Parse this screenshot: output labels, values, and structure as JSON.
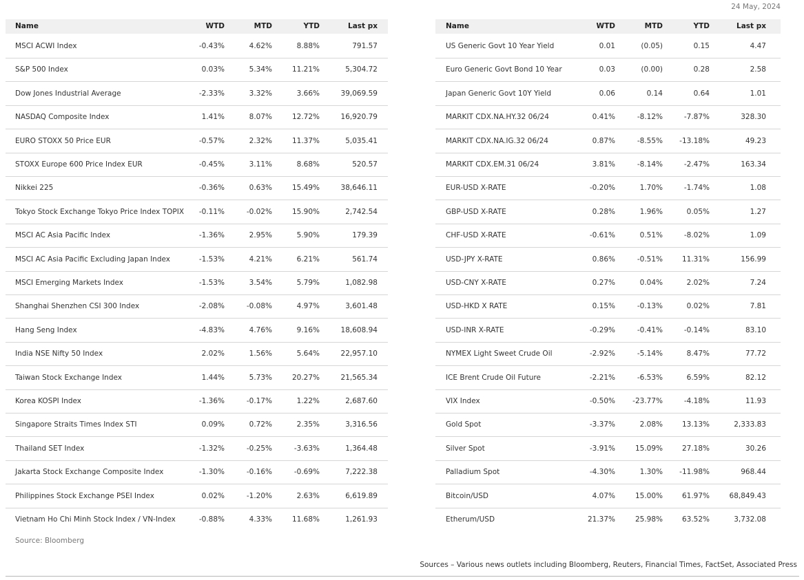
{
  "date": "24 May, 2024",
  "left_table": {
    "columns": [
      "Name",
      "WTD",
      "MTD",
      "YTD",
      "Last px"
    ],
    "rows": [
      [
        "MSCI ACWI Index",
        "-0.43%",
        "4.62%",
        "8.88%",
        "791.57"
      ],
      [
        "S&P 500 Index",
        "0.03%",
        "5.34%",
        "11.21%",
        "5,304.72"
      ],
      [
        "Dow Jones Industrial Average",
        "-2.33%",
        "3.32%",
        "3.66%",
        "39,069.59"
      ],
      [
        "NASDAQ Composite Index",
        "1.41%",
        "8.07%",
        "12.72%",
        "16,920.79"
      ],
      [
        "EURO STOXX 50 Price EUR",
        "-0.57%",
        "2.32%",
        "11.37%",
        "5,035.41"
      ],
      [
        "STOXX Europe 600 Price Index EUR",
        "-0.45%",
        "3.11%",
        "8.68%",
        "520.57"
      ],
      [
        "Nikkei 225",
        "-0.36%",
        "0.63%",
        "15.49%",
        "38,646.11"
      ],
      [
        "Tokyo Stock Exchange Tokyo Price Index TOPIX",
        "-0.11%",
        "-0.02%",
        "15.90%",
        "2,742.54"
      ],
      [
        "MSCI AC Asia Pacific Index",
        "-1.36%",
        "2.95%",
        "5.90%",
        "179.39"
      ],
      [
        "MSCI AC Asia Pacific Excluding Japan Index",
        "-1.53%",
        "4.21%",
        "6.21%",
        "561.74"
      ],
      [
        "MSCI Emerging Markets Index",
        "-1.53%",
        "3.54%",
        "5.79%",
        "1,082.98"
      ],
      [
        "Shanghai Shenzhen CSI 300 Index",
        "-2.08%",
        "-0.08%",
        "4.97%",
        "3,601.48"
      ],
      [
        "Hang Seng Index",
        "-4.83%",
        "4.76%",
        "9.16%",
        "18,608.94"
      ],
      [
        "India NSE Nifty 50 Index",
        "2.02%",
        "1.56%",
        "5.64%",
        "22,957.10"
      ],
      [
        "Taiwan Stock Exchange Index",
        "1.44%",
        "5.73%",
        "20.27%",
        "21,565.34"
      ],
      [
        "Korea KOSPI Index",
        "-1.36%",
        "-0.17%",
        "1.22%",
        "2,687.60"
      ],
      [
        "Singapore Straits Times Index STI",
        "0.09%",
        "0.72%",
        "2.35%",
        "3,316.56"
      ],
      [
        "Thailand SET Index",
        "-1.32%",
        "-0.25%",
        "-3.63%",
        "1,364.48"
      ],
      [
        "Jakarta Stock Exchange Composite Index",
        "-1.30%",
        "-0.16%",
        "-0.69%",
        "7,222.38"
      ],
      [
        "Philippines Stock Exchange PSEI Index",
        "0.02%",
        "-1.20%",
        "2.63%",
        "6,619.89"
      ],
      [
        "Vietnam Ho Chi Minh Stock Index / VN-Index",
        "-0.88%",
        "4.33%",
        "11.68%",
        "1,261.93"
      ]
    ]
  },
  "left_source": "Source: Bloomberg",
  "right_table": {
    "columns": [
      "Name",
      "WTD",
      "MTD",
      "YTD",
      "Last px"
    ],
    "rows": [
      [
        "US Generic Govt 10 Year Yield",
        "0.01",
        "(0.05)",
        "0.15",
        "4.47"
      ],
      [
        "Euro Generic Govt Bond 10 Year",
        "0.03",
        "(0.00)",
        "0.28",
        "2.58"
      ],
      [
        "Japan Generic Govt 10Y Yield",
        "0.06",
        "0.14",
        "0.64",
        "1.01"
      ],
      [
        "MARKIT CDX.NA.HY.32 06/24",
        "0.41%",
        "-8.12%",
        "-7.87%",
        "328.30"
      ],
      [
        "MARKIT CDX.NA.IG.32 06/24",
        "0.87%",
        "-8.55%",
        "-13.18%",
        "49.23"
      ],
      [
        "MARKIT CDX.EM.31 06/24",
        "3.81%",
        "-8.14%",
        "-2.47%",
        "163.34"
      ],
      [
        "EUR-USD X-RATE",
        "-0.20%",
        "1.70%",
        "-1.74%",
        "1.08"
      ],
      [
        "GBP-USD X-RATE",
        "0.28%",
        "1.96%",
        "0.05%",
        "1.27"
      ],
      [
        "CHF-USD X-RATE",
        "-0.61%",
        "0.51%",
        "-8.02%",
        "1.09"
      ],
      [
        "USD-JPY X-RATE",
        "0.86%",
        "-0.51%",
        "11.31%",
        "156.99"
      ],
      [
        "USD-CNY X-RATE",
        "0.27%",
        "0.04%",
        "2.02%",
        "7.24"
      ],
      [
        "USD-HKD X RATE",
        "0.15%",
        "-0.13%",
        "0.02%",
        "7.81"
      ],
      [
        "USD-INR X-RATE",
        "-0.29%",
        "-0.41%",
        "-0.14%",
        "83.10"
      ],
      [
        "NYMEX Light Sweet Crude Oil",
        "-2.92%",
        "-5.14%",
        "8.47%",
        "77.72"
      ],
      [
        "ICE Brent Crude Oil Future",
        "-2.21%",
        "-6.53%",
        "6.59%",
        "82.12"
      ],
      [
        "VIX Index",
        "-0.50%",
        "-23.77%",
        "-4.18%",
        "11.93"
      ],
      [
        "Gold Spot",
        "-3.37%",
        "2.08%",
        "13.13%",
        "2,333.83"
      ],
      [
        "Silver Spot",
        "-3.91%",
        "15.09%",
        "27.18%",
        "30.26"
      ],
      [
        "Palladium Spot",
        "-4.30%",
        "1.30%",
        "-11.98%",
        "968.44"
      ],
      [
        "Bitcoin/USD",
        "4.07%",
        "15.00%",
        "61.97%",
        "68,849.43"
      ],
      [
        "Etherum/USD",
        "21.37%",
        "25.98%",
        "63.52%",
        "3,732.08"
      ]
    ]
  },
  "footer": "Sources – Various news outlets including Bloomberg, Reuters, Financial Times, FactSet, Associated Press"
}
